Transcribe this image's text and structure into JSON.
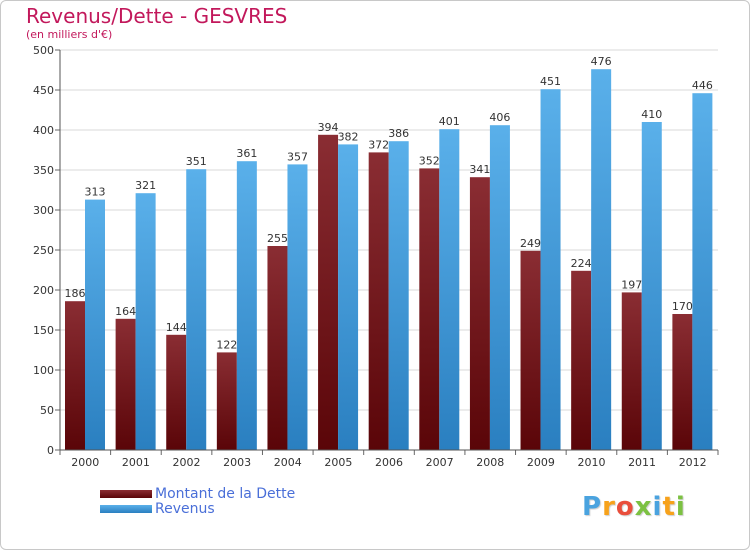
{
  "title": "Revenus/Dette - GESVRES",
  "subtitle": "(en milliers d'€)",
  "colors": {
    "dette_top": "#8a2d33",
    "dette_bottom": "#5a0508",
    "revenus_top": "#5ab0ea",
    "revenus_bottom": "#2a7fc0",
    "title": "#c2185b",
    "legend_text": "#4a6fd8"
  },
  "legend": [
    {
      "label": "Montant de la Dette",
      "key": "dette"
    },
    {
      "label": "Revenus",
      "key": "revenus"
    }
  ],
  "logo": {
    "letters": [
      "P",
      "r",
      "o",
      "x",
      "i",
      "t",
      "i"
    ],
    "colors": [
      "#4aa3df",
      "#f7a21b",
      "#e94e3c",
      "#7cc142",
      "#4aa3df",
      "#f7a21b",
      "#7cc142"
    ]
  },
  "chart_data": {
    "type": "bar",
    "title": "Revenus/Dette - GESVRES",
    "ylabel": "(en milliers d'€)",
    "xlabel": "",
    "categories": [
      "2000",
      "2001",
      "2002",
      "2003",
      "2004",
      "2005",
      "2006",
      "2007",
      "2008",
      "2009",
      "2010",
      "2011",
      "2012"
    ],
    "series": [
      {
        "name": "Montant de la Dette",
        "values": [
          186,
          164,
          144,
          122,
          255,
          394,
          372,
          352,
          341,
          249,
          224,
          197,
          170
        ]
      },
      {
        "name": "Revenus",
        "values": [
          313,
          321,
          351,
          361,
          357,
          382,
          386,
          401,
          406,
          451,
          476,
          410,
          446
        ]
      }
    ],
    "ylim": [
      0,
      500
    ],
    "yticks": [
      0,
      50,
      100,
      150,
      200,
      250,
      300,
      350,
      400,
      450,
      500
    ],
    "grid": true,
    "legend_position": "bottom-left"
  }
}
